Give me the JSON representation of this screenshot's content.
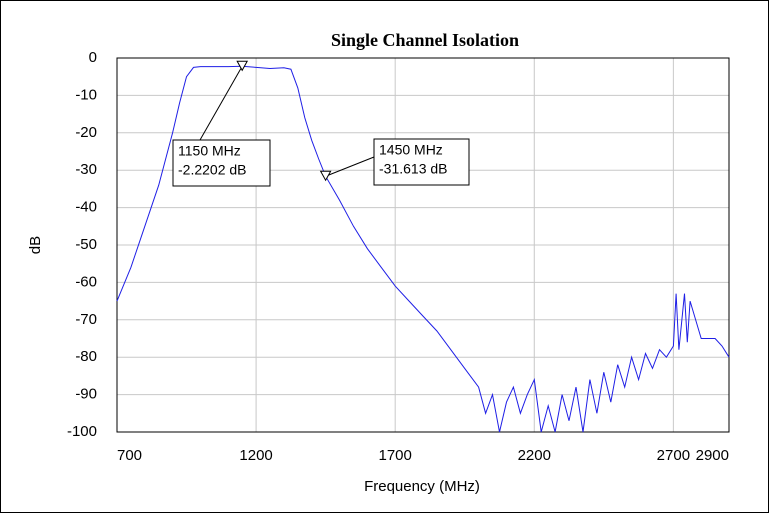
{
  "chart_data": {
    "type": "line",
    "title": "Single Channel Isolation",
    "xlabel": "Frequency (MHz)",
    "ylabel": "dB",
    "xlim": [
      700,
      2900
    ],
    "xticks": [
      700,
      1200,
      1700,
      2200,
      2700,
      2900
    ],
    "ylim": [
      -100,
      0
    ],
    "yticks": [
      0,
      -10,
      -20,
      -30,
      -40,
      -50,
      -60,
      -70,
      -80,
      -90,
      -100
    ],
    "grid": true,
    "series": [
      {
        "color": "#1f1fe6",
        "x": [
          700,
          750,
          800,
          850,
          900,
          925,
          950,
          975,
          1000,
          1100,
          1150,
          1200,
          1250,
          1300,
          1325,
          1350,
          1375,
          1400,
          1425,
          1450,
          1500,
          1550,
          1600,
          1650,
          1700,
          1750,
          1800,
          1850,
          1900,
          1950,
          2000,
          2025,
          2050,
          2075,
          2100,
          2125,
          2150,
          2175,
          2200,
          2225,
          2250,
          2275,
          2300,
          2325,
          2350,
          2375,
          2400,
          2425,
          2450,
          2475,
          2500,
          2525,
          2550,
          2575,
          2600,
          2625,
          2650,
          2675,
          2700,
          2710,
          2720,
          2740,
          2750,
          2760,
          2800,
          2850,
          2875,
          2900
        ],
        "values": [
          -65,
          -56,
          -45,
          -34,
          -20,
          -12,
          -5,
          -2.5,
          -2.3,
          -2.3,
          -2.2,
          -2.5,
          -2.8,
          -2.6,
          -3,
          -8,
          -16,
          -22,
          -27,
          -31.6,
          -38,
          -45,
          -51,
          -56,
          -61,
          -65,
          -69,
          -73,
          -78,
          -83,
          -88,
          -95,
          -90,
          -100,
          -92,
          -88,
          -95,
          -90,
          -86,
          -100,
          -93,
          -100,
          -90,
          -97,
          -88,
          -100,
          -86,
          -95,
          -84,
          -92,
          -82,
          -88,
          -80,
          -86,
          -79,
          -83,
          -78,
          -80,
          -77,
          -63,
          -78,
          -63,
          -76,
          -65,
          -75,
          -75,
          -77,
          -80
        ]
      }
    ],
    "annotations": [
      {
        "x": 1150,
        "y": -2.2202,
        "lines": [
          "1150 MHz",
          "-2.2202 dB"
        ]
      },
      {
        "x": 1450,
        "y": -31.613,
        "lines": [
          "1450 MHz",
          "-31.613 dB"
        ]
      }
    ]
  }
}
